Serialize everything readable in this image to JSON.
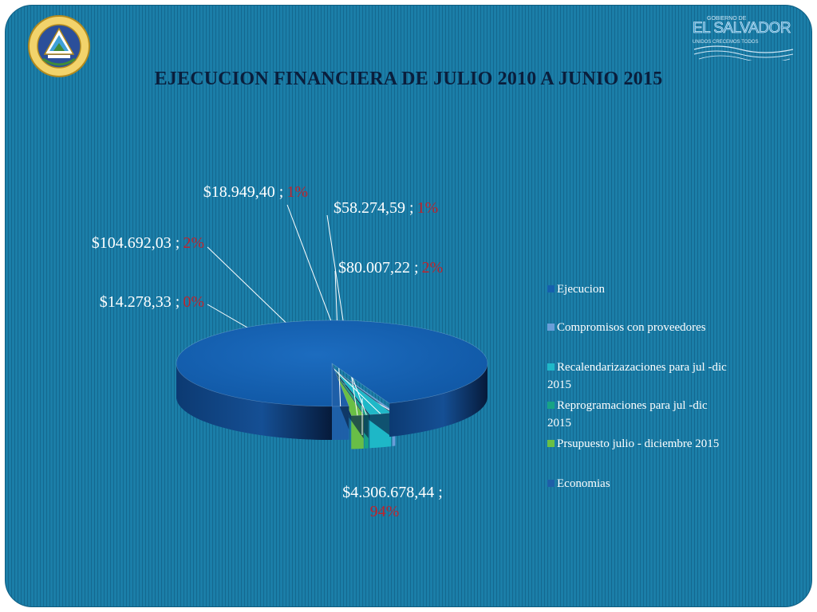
{
  "slide": {
    "title": "EJECUCION FINANCIERA DE JULIO 2010 A JUNIO 2015",
    "seal_icon": "el-salvador-coat-of-arms-icon",
    "gov_logo": {
      "small_text": "GOBIERNO DE",
      "name": "EL SALVADOR",
      "tagline": "UNIDOS CRECEMOS TODOS"
    }
  },
  "chart_data": {
    "type": "pie",
    "style": "3d-exploded",
    "legend_position": "right",
    "categories": [
      "Ejecucion",
      "Compromisos con proveedores",
      "Recalendarizazaciones para jul -dic 2015",
      "Reprogramaciones  para jul -dic 2015",
      "Prsupuesto julio - diciembre 2015",
      "Economias"
    ],
    "legend_lines": [
      [
        "Ejecucion"
      ],
      [
        "Compromisos con proveedores"
      ],
      [
        "Recalendarizazaciones para jul -dic",
        "2015"
      ],
      [
        "Reprogramaciones  para jul -dic",
        "2015"
      ],
      [
        "Prsupuesto julio - diciembre 2015"
      ],
      [
        "Economias"
      ]
    ],
    "values": [
      4306678.44,
      14278.33,
      104692.03,
      18949.4,
      58274.59,
      80007.22
    ],
    "data_labels": [
      {
        "value": "$4.306.678,44 ;",
        "pct": "94%"
      },
      {
        "value": "$14.278,33 ;",
        "pct": "0%"
      },
      {
        "value": "$104.692,03 ;",
        "pct": "2%"
      },
      {
        "value": "$18.949,40 ;",
        "pct": "1%"
      },
      {
        "value": "$58.274,59 ;",
        "pct": "1%"
      },
      {
        "value": "$80.007,22 ;",
        "pct": "2%"
      }
    ],
    "colors": [
      "#1560ad",
      "#6a9ed8",
      "#1fb8c8",
      "#17a385",
      "#6abf45",
      "#1e5fa8"
    ],
    "label_color": "#ffffff",
    "pct_color": "#c0232b"
  }
}
